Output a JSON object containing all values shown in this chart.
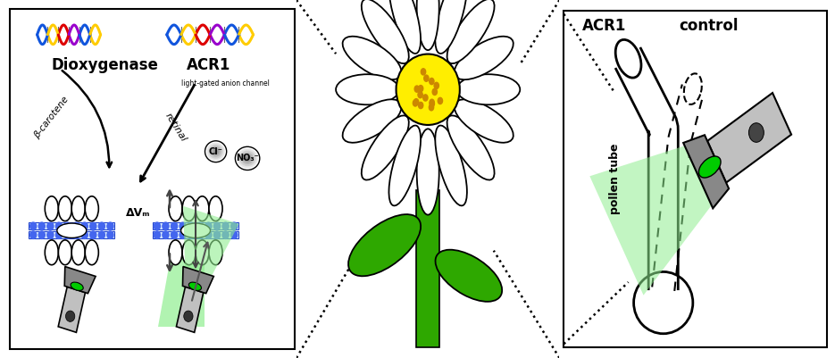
{
  "fig_width": 9.35,
  "fig_height": 4.01,
  "background_color": "#ffffff",
  "panel1": {
    "title_dioxygenase": "Dioxygenase",
    "title_acr1": "ACR1",
    "subtitle_acr1": "light-gated anion channel",
    "label_beta": "β-carotene",
    "label_retinal": "retinal",
    "label_delta_vm": "ΔVₘ",
    "label_cl": "Cl⁻",
    "label_no3": "NO₃⁻"
  },
  "panel3": {
    "label_acr1": "ACR1",
    "label_control": "control",
    "label_pollen": "pollen tube"
  }
}
